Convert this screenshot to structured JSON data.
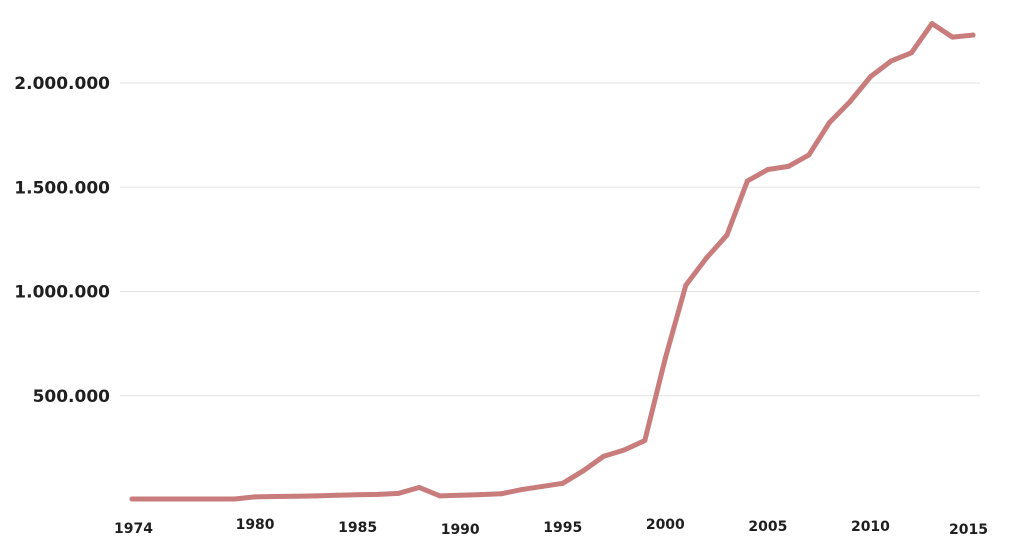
{
  "chart_data": {
    "type": "line",
    "title": "",
    "xlabel": "",
    "ylabel": "",
    "xlim": [
      1974,
      2015
    ],
    "ylim": [
      0,
      2300000
    ],
    "grid": true,
    "legend": "none",
    "line_color": "#c97c7c",
    "y_ticks": [
      {
        "value": 500000,
        "label": "500.000"
      },
      {
        "value": 1000000,
        "label": "1.000.000"
      },
      {
        "value": 1500000,
        "label": "1.500.000"
      },
      {
        "value": 2000000,
        "label": "2.000.000"
      }
    ],
    "x_ticks": [
      {
        "value": 1974,
        "label": "1974"
      },
      {
        "value": 1980,
        "label": "1980"
      },
      {
        "value": 1985,
        "label": "1985"
      },
      {
        "value": 1990,
        "label": "1990"
      },
      {
        "value": 1995,
        "label": "1995"
      },
      {
        "value": 2000,
        "label": "2000"
      },
      {
        "value": 2005,
        "label": "2005"
      },
      {
        "value": 2010,
        "label": "2010"
      },
      {
        "value": 2015,
        "label": "2015"
      }
    ],
    "series": [
      {
        "x": [
          1974,
          1975,
          1976,
          1977,
          1978,
          1979,
          1980,
          1981,
          1982,
          1983,
          1984,
          1985,
          1986,
          1987,
          1988,
          1989,
          1990,
          1991,
          1992,
          1993,
          1994,
          1995,
          1996,
          1997,
          1998,
          1999,
          2000,
          2001,
          2002,
          2003,
          2004,
          2005,
          2006,
          2007,
          2008,
          2009,
          2010,
          2011,
          2012,
          2013,
          2014,
          2015
        ],
        "values": [
          5000,
          5000,
          5000,
          5000,
          5000,
          5000,
          15000,
          17000,
          18000,
          20000,
          23000,
          25000,
          27000,
          32000,
          60000,
          20000,
          23000,
          26000,
          30000,
          50000,
          65000,
          80000,
          140000,
          210000,
          240000,
          285000,
          680000,
          1030000,
          1160000,
          1270000,
          1530000,
          1585000,
          1600000,
          1655000,
          1810000,
          1910000,
          2030000,
          2105000,
          2145000,
          2285000,
          2220000,
          2230000
        ]
      }
    ]
  }
}
